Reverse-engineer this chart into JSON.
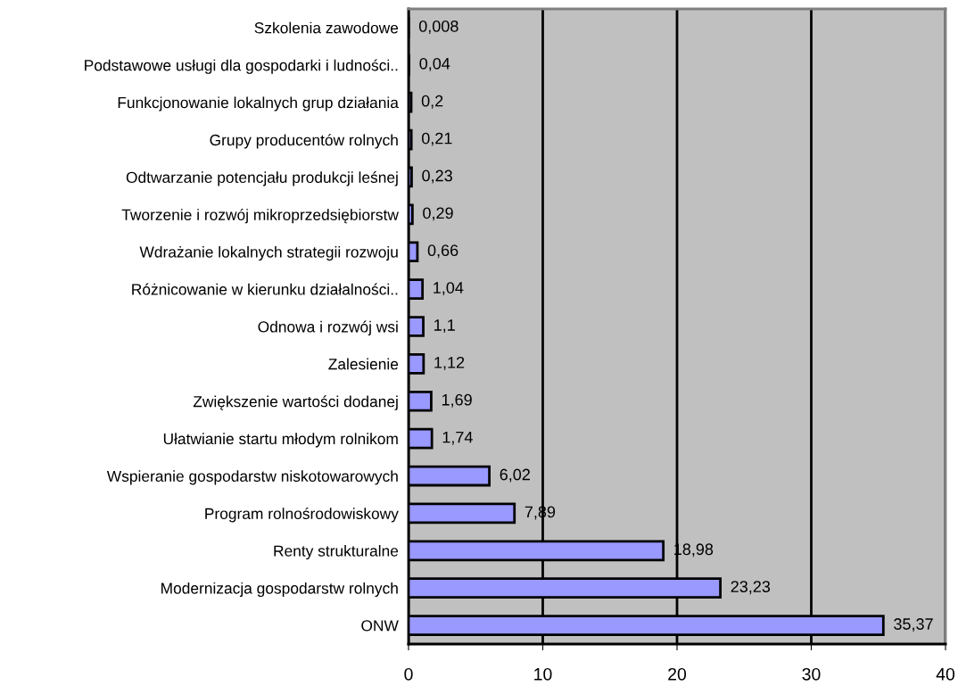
{
  "chart_data": {
    "type": "bar",
    "orientation": "horizontal",
    "categories": [
      "Szkolenia zawodowe",
      "Podstawowe usługi dla gospodarki i ludności..",
      "Funkcjonowanie lokalnych grup działania",
      "Grupy producentów rolnych",
      "Odtwarzanie potencjału produkcji leśnej",
      "Tworzenie i rozwój mikroprzedsiębiorstw",
      "Wdrażanie lokalnych strategii rozwoju",
      "Różnicowanie w kierunku działalności..",
      "Odnowa i rozwój wsi",
      "Zalesienie",
      "Zwiększenie wartości dodanej",
      "Ułatwianie startu młodym rolnikom",
      "Wspieranie gospodarstw niskotowarowych",
      "Program rolnośrodowiskowy",
      "Renty strukturalne",
      "Modernizacja gospodarstw rolnych",
      "ONW"
    ],
    "values": [
      0.008,
      0.04,
      0.2,
      0.21,
      0.23,
      0.29,
      0.66,
      1.04,
      1.1,
      1.12,
      1.69,
      1.74,
      6.02,
      7.89,
      18.98,
      23.23,
      35.37
    ],
    "value_labels": [
      "0,008",
      "0,04",
      "0,2",
      "0,21",
      "0,23",
      "0,29",
      "0,66",
      "1,04",
      "1,1",
      "1,12",
      "1,69",
      "1,74",
      "6,02",
      "7,89",
      "18,98",
      "23,23",
      "35,37"
    ],
    "color": "#9999ff",
    "xlim": [
      0,
      40
    ],
    "xticks": [
      0,
      10,
      20,
      30,
      40
    ],
    "grid": "x"
  }
}
